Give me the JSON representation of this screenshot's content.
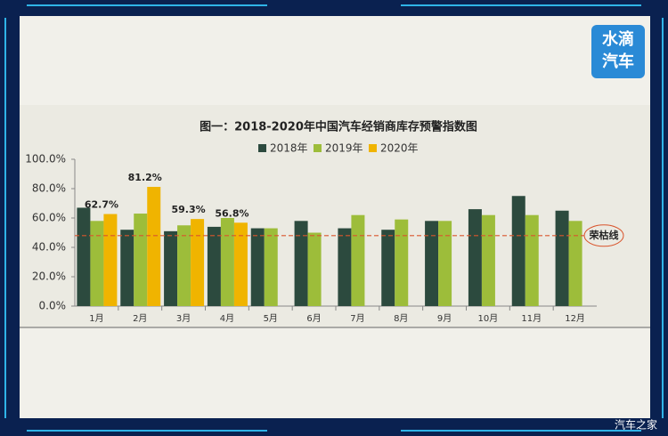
{
  "chart_data": {
    "type": "bar",
    "title": "图一：2018-2020年中国汽车经销商库存预警指数图",
    "categories": [
      "1月",
      "2月",
      "3月",
      "4月",
      "5月",
      "6月",
      "7月",
      "8月",
      "9月",
      "10月",
      "11月",
      "12月"
    ],
    "series": [
      {
        "name": "2018年",
        "color": "#2c4a3e",
        "values": [
          67,
          52,
          51,
          54,
          53,
          58,
          53,
          52,
          58,
          66,
          75,
          65
        ]
      },
      {
        "name": "2019年",
        "color": "#9dbd3a",
        "values": [
          58,
          63,
          55,
          60,
          53,
          50,
          62,
          59,
          58,
          62,
          62,
          58
        ]
      },
      {
        "name": "2020年",
        "color": "#f0b400",
        "values": [
          62.7,
          81.2,
          59.3,
          56.8,
          null,
          null,
          null,
          null,
          null,
          null,
          null,
          null
        ],
        "value_labels": [
          "62.7%",
          "81.2%",
          "59.3%",
          "56.8%",
          null,
          null,
          null,
          null,
          null,
          null,
          null,
          null
        ]
      }
    ],
    "ylim": [
      0,
      100
    ],
    "yticks": [
      {
        "value": 0,
        "label": "0.0%"
      },
      {
        "value": 20,
        "label": "20.0%"
      },
      {
        "value": 40,
        "label": "40.0%"
      },
      {
        "value": 60,
        "label": "60.0%"
      },
      {
        "value": 80,
        "label": "80.0%"
      },
      {
        "value": 100,
        "label": "100.0%"
      }
    ],
    "reference_line": {
      "value": 48,
      "label": "荣枯线",
      "color": "#d9542c"
    },
    "legend": "top"
  },
  "logo": [
    "水滴",
    "汽车"
  ],
  "watermark": "汽车之家"
}
